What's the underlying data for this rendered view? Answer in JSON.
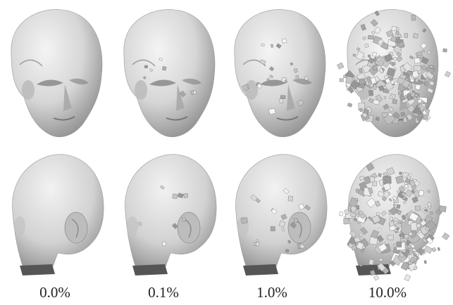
{
  "figure": {
    "rows": [
      "front-view",
      "back-view"
    ],
    "columns": [
      {
        "label": "0.0%",
        "noise_level": 0.0
      },
      {
        "label": "0.1%",
        "noise_level": 0.1
      },
      {
        "label": "1.0%",
        "noise_level": 1.0
      },
      {
        "label": "10.0%",
        "noise_level": 10.0
      }
    ],
    "colors": {
      "surface_light": "#e8e8e8",
      "surface_mid": "#c8c8c8",
      "surface_dark": "#8e8e8e",
      "shadow": "#5a5a5a",
      "label": "#222222"
    }
  }
}
